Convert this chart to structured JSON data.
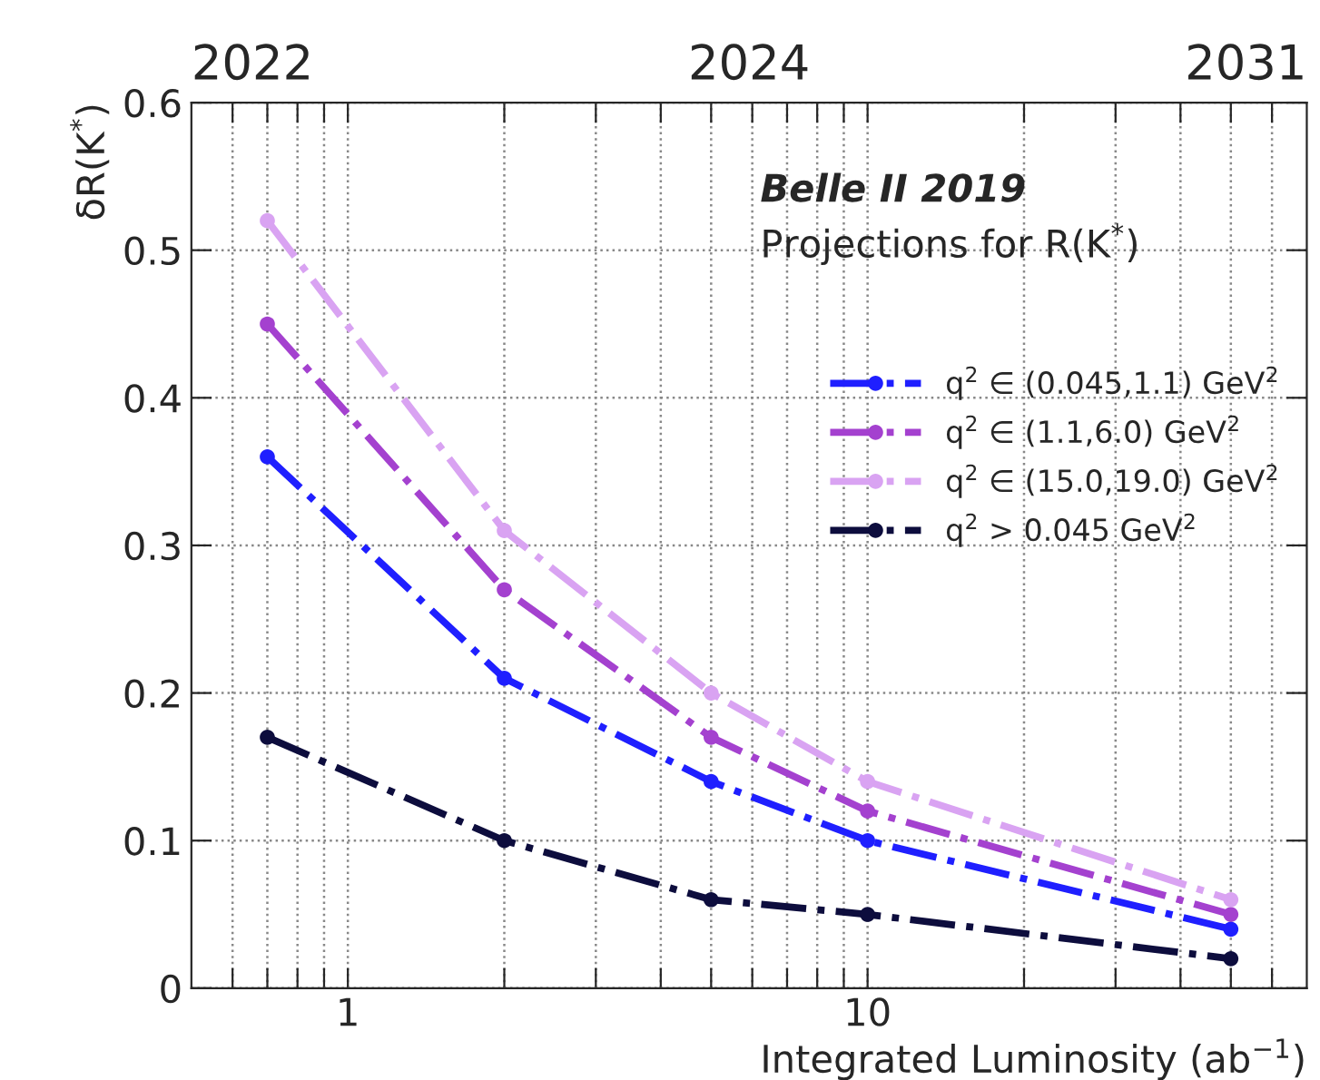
{
  "chart_data": {
    "type": "line",
    "xlabel": "Integrated Luminosity (ab$^{−1}$)",
    "ylabel": "δR(K$^{*}$)",
    "annotations": [
      "Belle II 2019",
      "Projections for R(K$^{*}$)",
      "2022",
      "2024",
      "2031"
    ],
    "x": [
      0.7,
      2,
      5,
      10,
      50
    ],
    "series": [
      {
        "name": "q$^{2}$ ∈ (0.045,1.1) GeV$^{2}$",
        "color": "#1f1fff",
        "values": [
          0.36,
          0.21,
          0.14,
          0.1,
          0.04
        ]
      },
      {
        "name": "q$^{2}$ ∈ (1.1,6.0) GeV$^{2}$",
        "color": "#a441cf",
        "values": [
          0.45,
          0.27,
          0.17,
          0.12,
          0.05
        ]
      },
      {
        "name": "q$^{2}$ ∈ (15.0,19.0) GeV$^{2}$",
        "color": "#d9a3f2",
        "values": [
          0.52,
          0.31,
          0.2,
          0.14,
          0.06
        ]
      },
      {
        "name": "q$^{2}$ > 0.045 GeV$^{2}$",
        "color": "#0d0d3d",
        "values": [
          0.17,
          0.1,
          0.06,
          0.05,
          0.02
        ]
      }
    ],
    "log": "x",
    "xlim": [
      0.5,
      70
    ],
    "xticks": [
      {
        "value": 0.6,
        "label": null
      },
      {
        "value": 0.7,
        "label": null
      },
      {
        "value": 0.8,
        "label": null
      },
      {
        "value": 0.9,
        "label": null
      },
      1,
      {
        "value": 2,
        "label": null
      },
      {
        "value": 3,
        "label": null
      },
      {
        "value": 4,
        "label": null
      },
      {
        "value": 5,
        "label": null
      },
      {
        "value": 6,
        "label": null
      },
      {
        "value": 7,
        "label": null
      },
      {
        "value": 8,
        "label": null
      },
      {
        "value": 9,
        "label": null
      },
      10,
      {
        "value": 20,
        "label": null
      },
      {
        "value": 30,
        "label": null
      },
      {
        "value": 40,
        "label": null
      },
      {
        "value": 50,
        "label": null
      },
      {
        "value": 60,
        "label": null
      }
    ],
    "ylim": [
      0,
      0.6
    ],
    "yticks": [
      0,
      0.1,
      0.2,
      0.3,
      0.4,
      0.5,
      0.6
    ],
    "grid": true,
    "legend": "right",
    "marker": "circle",
    "line_style": "dashdot"
  }
}
